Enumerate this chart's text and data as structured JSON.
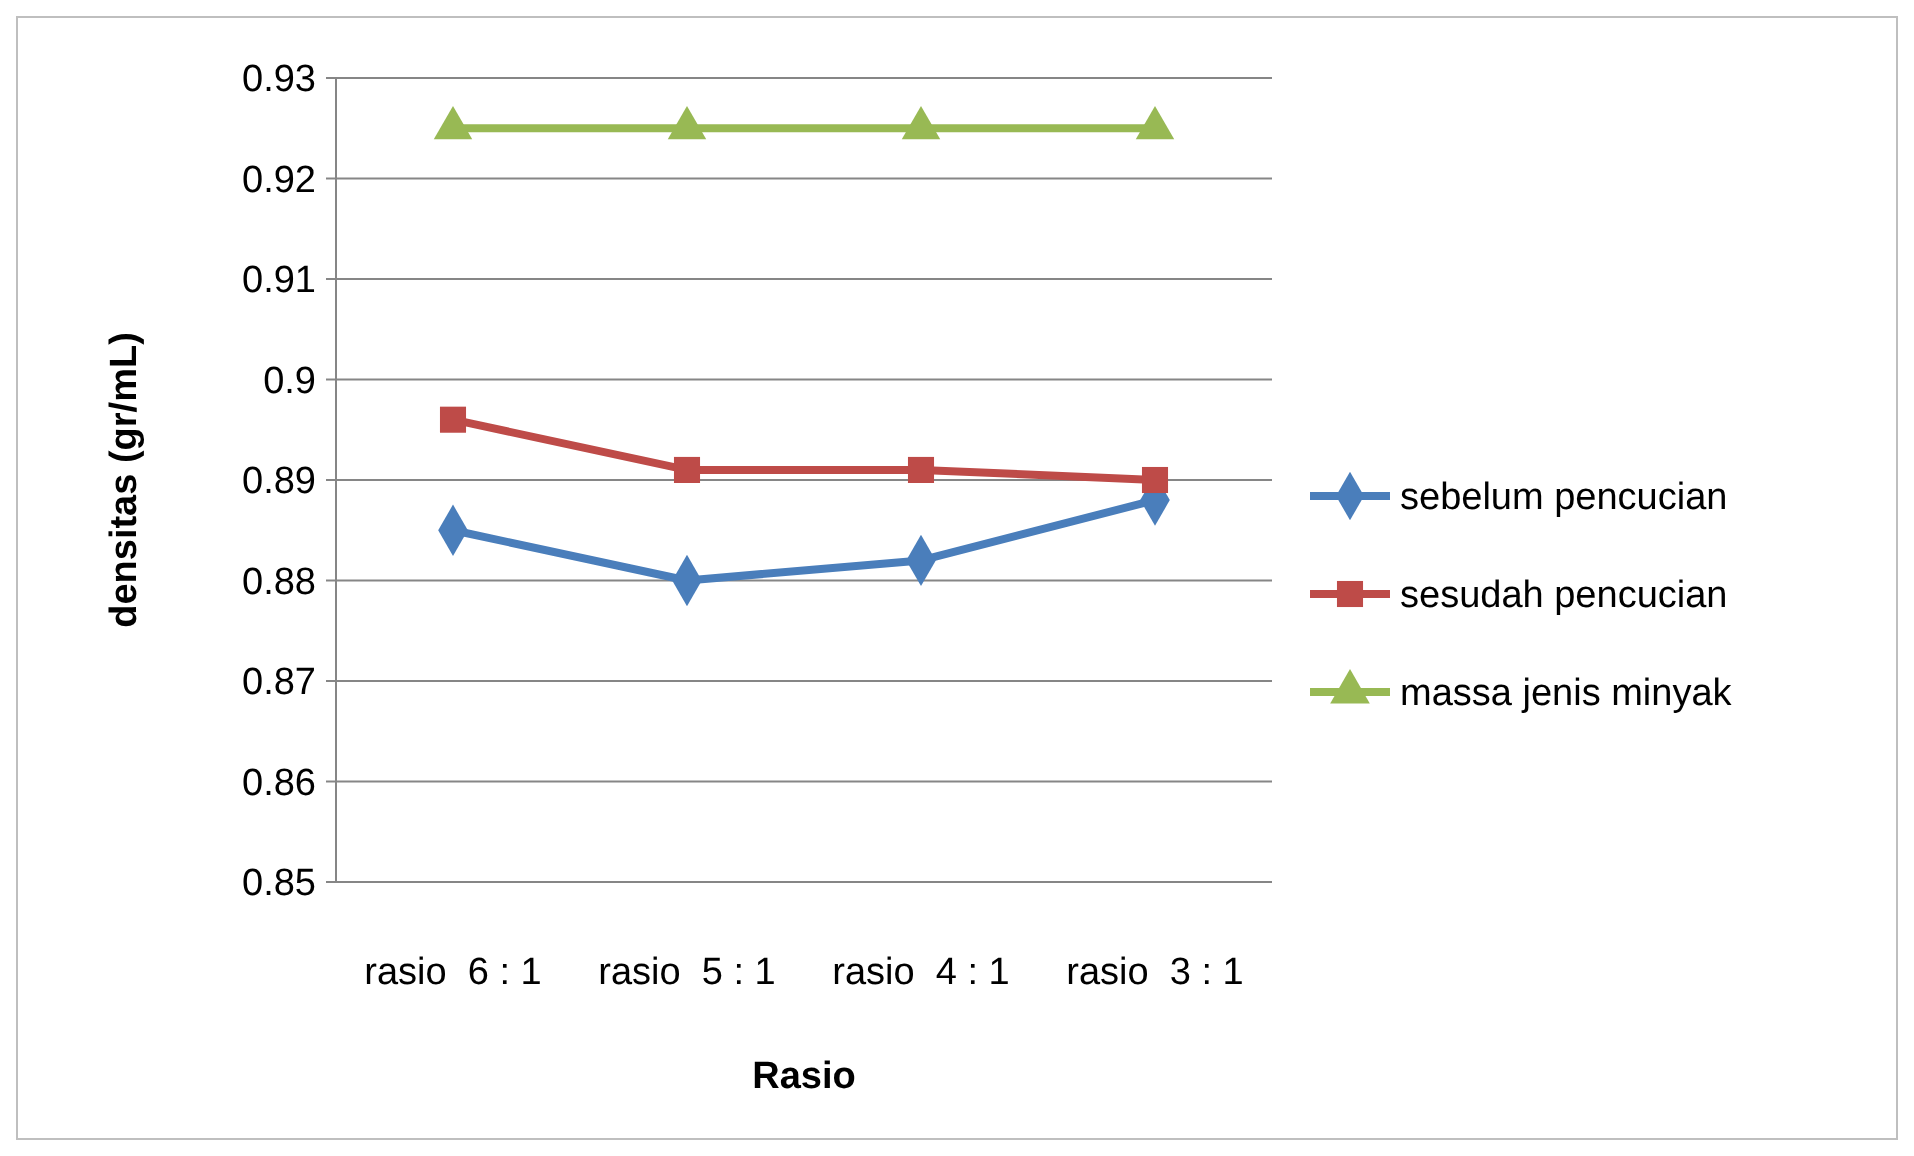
{
  "chart_data": {
    "type": "line",
    "xlabel": "Rasio",
    "ylabel": "densitas (gr/mL)",
    "categories": [
      "rasio  6 : 1",
      "rasio  5 : 1",
      "rasio  4 : 1",
      "rasio  3 : 1"
    ],
    "series": [
      {
        "name": "sebelum pencucian",
        "color": "#4a7ebb",
        "marker": "diamond",
        "values": [
          0.885,
          0.88,
          0.882,
          0.888
        ]
      },
      {
        "name": "sesudah pencucian",
        "color": "#be4b48",
        "marker": "square",
        "values": [
          0.896,
          0.891,
          0.891,
          0.89
        ]
      },
      {
        "name": "massa jenis minyak",
        "color": "#98b954",
        "marker": "triangle",
        "values": [
          0.925,
          0.925,
          0.925,
          0.925
        ]
      }
    ],
    "ylim": [
      0.85,
      0.93
    ],
    "yticks": [
      0.85,
      0.86,
      0.87,
      0.88,
      0.89,
      {
        "value": 0.9,
        "label": "0.9"
      },
      0.91,
      0.92,
      0.93
    ],
    "grid": "y",
    "legend": "right"
  }
}
